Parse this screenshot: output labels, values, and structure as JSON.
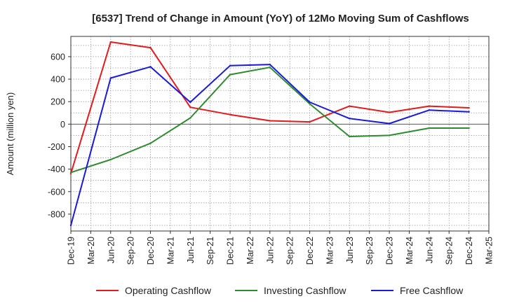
{
  "chart_data": {
    "type": "line",
    "title": "[6537]  Trend of Change in Amount (YoY) of 12Mo Moving Sum of Cashflows",
    "xlabel": "",
    "ylabel": "Amount (million yen)",
    "ylim": [
      -950,
      780
    ],
    "yticks": [
      -800,
      -600,
      -400,
      -200,
      0,
      200,
      400,
      600
    ],
    "categories": [
      "Dec-19",
      "Mar-20",
      "Jun-20",
      "Sep-20",
      "Dec-20",
      "Mar-21",
      "Jun-21",
      "Sep-21",
      "Dec-21",
      "Mar-22",
      "Jun-22",
      "Sep-22",
      "Dec-22",
      "Mar-23",
      "Jun-23",
      "Sep-23",
      "Dec-23",
      "Mar-24",
      "Jun-24",
      "Sep-24",
      "Dec-24",
      "Mar-25"
    ],
    "series": [
      {
        "name": "Operating Cashflow",
        "color": "#e41a1c",
        "values": [
          -440,
          null,
          730,
          null,
          680,
          null,
          150,
          null,
          85,
          null,
          30,
          null,
          20,
          null,
          160,
          null,
          105,
          null,
          160,
          null,
          145,
          null
        ]
      },
      {
        "name": "Investing Cashflow",
        "color": "#2e8b2e",
        "values": [
          -430,
          null,
          -315,
          null,
          -170,
          null,
          55,
          null,
          440,
          null,
          505,
          null,
          180,
          null,
          -110,
          null,
          -100,
          null,
          -35,
          null,
          -35,
          null
        ]
      },
      {
        "name": "Free Cashflow",
        "color": "#1a1adb",
        "values": [
          -900,
          null,
          410,
          null,
          510,
          null,
          195,
          null,
          520,
          null,
          530,
          null,
          195,
          null,
          50,
          null,
          5,
          null,
          125,
          null,
          110,
          null
        ]
      }
    ],
    "grid": true,
    "legend": "bottom"
  }
}
